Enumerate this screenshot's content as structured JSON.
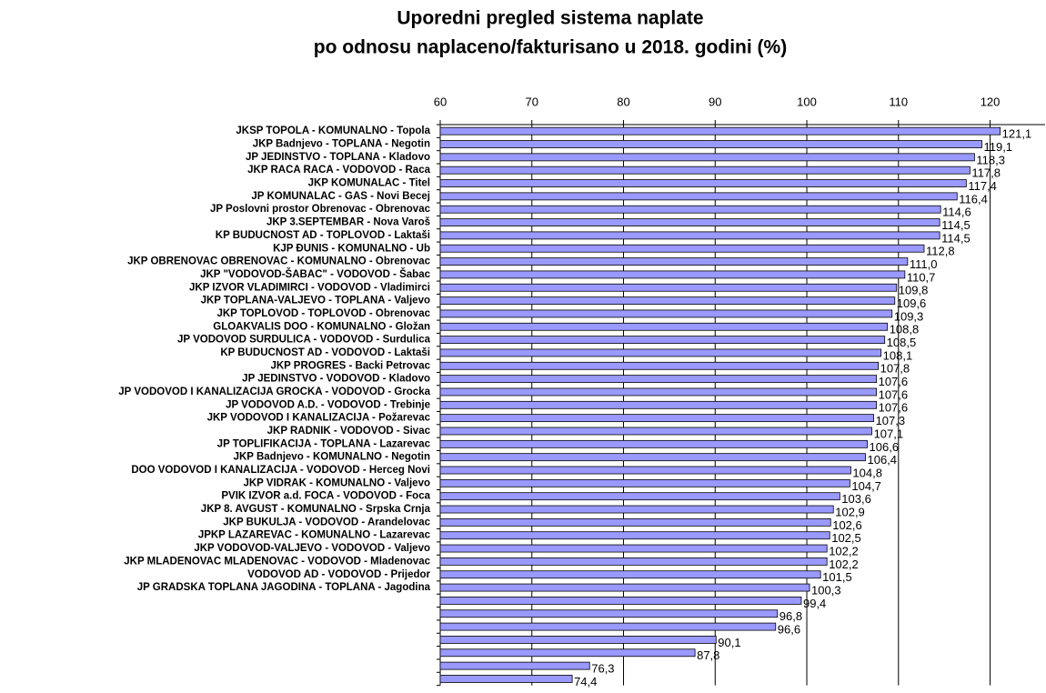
{
  "chart_data": {
    "type": "bar",
    "orientation": "horizontal",
    "title": "Uporedni pregled sistema naplate",
    "subtitle": "po odnosu naplaceno/fakturisano u 2018. godini (%)",
    "categories": [
      "JKSP TOPOLA - KOMUNALNO - Topola",
      "JKP Badnjevo - TOPLANA - Negotin",
      "JP JEDINSTVO - TOPLANA - Kladovo",
      "JKP RACA RACA - VODOVOD - Raca",
      "JKP KOMUNALAC - Titel",
      "JP KOMUNALAC - GAS - Novi Becej",
      "JP Poslovni prostor Obrenovac - Obrenovac",
      "JKP 3.SEPTEMBAR - Nova Varoš",
      "KP BUDUCNOST AD - TOPLOVOD - Laktaši",
      "KJP ĐUNIS - KOMUNALNO - Ub",
      "JKP OBRENOVAC OBRENOVAC - KOMUNALNO - Obrenovac",
      "JKP \"VODOVOD-ŠABAC\" - VODOVOD - Šabac",
      "JKP IZVOR VLADIMIRCI - VODOVOD - Vladimirci",
      "JKP TOPLANA-VALJEVO - TOPLANA - Valjevo",
      "JKP TOPLOVOD - TOPLOVOD - Obrenovac",
      "GLOAKVALIS DOO - KOMUNALNO - Gložan",
      "JP VODOVOD SURDULICA - VODOVOD - Surdulica",
      "KP BUDUCNOST AD - VODOVOD - Laktaši",
      "JKP PROGRES - Backi Petrovac",
      "JP JEDINSTVO - VODOVOD - Kladovo",
      "JP VODOVOD I KANALIZACIJA GROCKA - VODOVOD - Grocka",
      "JP VODOVOD A.D. - VODOVOD - Trebinje",
      "JKP VODOVOD I KANALIZACIJA - Požarevac",
      "JKP RADNIK - VODOVOD - Sivac",
      "JP TOPLIFIKACIJA - TOPLANA - Lazarevac",
      "JKP Badnjevo - KOMUNALNO - Negotin",
      "DOO VODOVOD I KANALIZACIJA - VODOVOD - Herceg Novi",
      "JKP VIDRAK - KOMUNALNO - Valjevo",
      "PVIK IZVOR a.d. FOCA - VODOVOD - Foca",
      "JKP 8. AVGUST - KOMUNALNO - Srpska Crnja",
      "JKP BUKULJA - VODOVOD - Arandelovac",
      "JPKP LAZAREVAC - KOMUNALNO - Lazarevac",
      "JKP VODOVOD-VALJEVO - VODOVOD - Valjevo",
      "JKP MLADENOVAC MLADENOVAC - VODOVOD - Mladenovac",
      "VODOVOD AD - VODOVOD - Prijedor",
      "JP GRADSKA TOPLANA JAGODINA - TOPLANA - Jagodina",
      null,
      null,
      null,
      null,
      null,
      null,
      null
    ],
    "values": [
      121.1,
      119.1,
      118.3,
      117.8,
      117.4,
      116.4,
      114.6,
      114.5,
      114.5,
      112.8,
      111.0,
      110.7,
      109.8,
      109.6,
      109.3,
      108.8,
      108.5,
      108.1,
      107.8,
      107.6,
      107.6,
      107.6,
      107.3,
      107.1,
      106.6,
      106.4,
      104.8,
      104.7,
      103.6,
      102.9,
      102.6,
      102.5,
      102.2,
      102.2,
      101.5,
      100.3,
      99.4,
      96.8,
      96.6,
      90.1,
      87.8,
      76.3,
      74.4
    ],
    "value_labels": [
      "121,1",
      "119,1",
      "118,3",
      "117,8",
      "117,4",
      "116,4",
      "114,6",
      "114,5",
      "114,5",
      "112,8",
      "111,0",
      "110,7",
      "109,8",
      "109,6",
      "109,3",
      "108,8",
      "108,5",
      "108,1",
      "107,8",
      "107,6",
      "107,6",
      "107,6",
      "107,3",
      "107,1",
      "106,6",
      "106,4",
      "104,8",
      "104,7",
      "103,6",
      "102,9",
      "102,6",
      "102,5",
      "102,2",
      "102,2",
      "101,5",
      "100,3",
      "99,4",
      "96,8",
      "96,6",
      "90,1",
      "87,8",
      "76,3",
      "74,4"
    ],
    "color": "#9999ff",
    "xlim": [
      60,
      126
    ],
    "xticks": [
      60,
      70,
      80,
      90,
      100,
      110,
      120
    ],
    "grid": true
  }
}
